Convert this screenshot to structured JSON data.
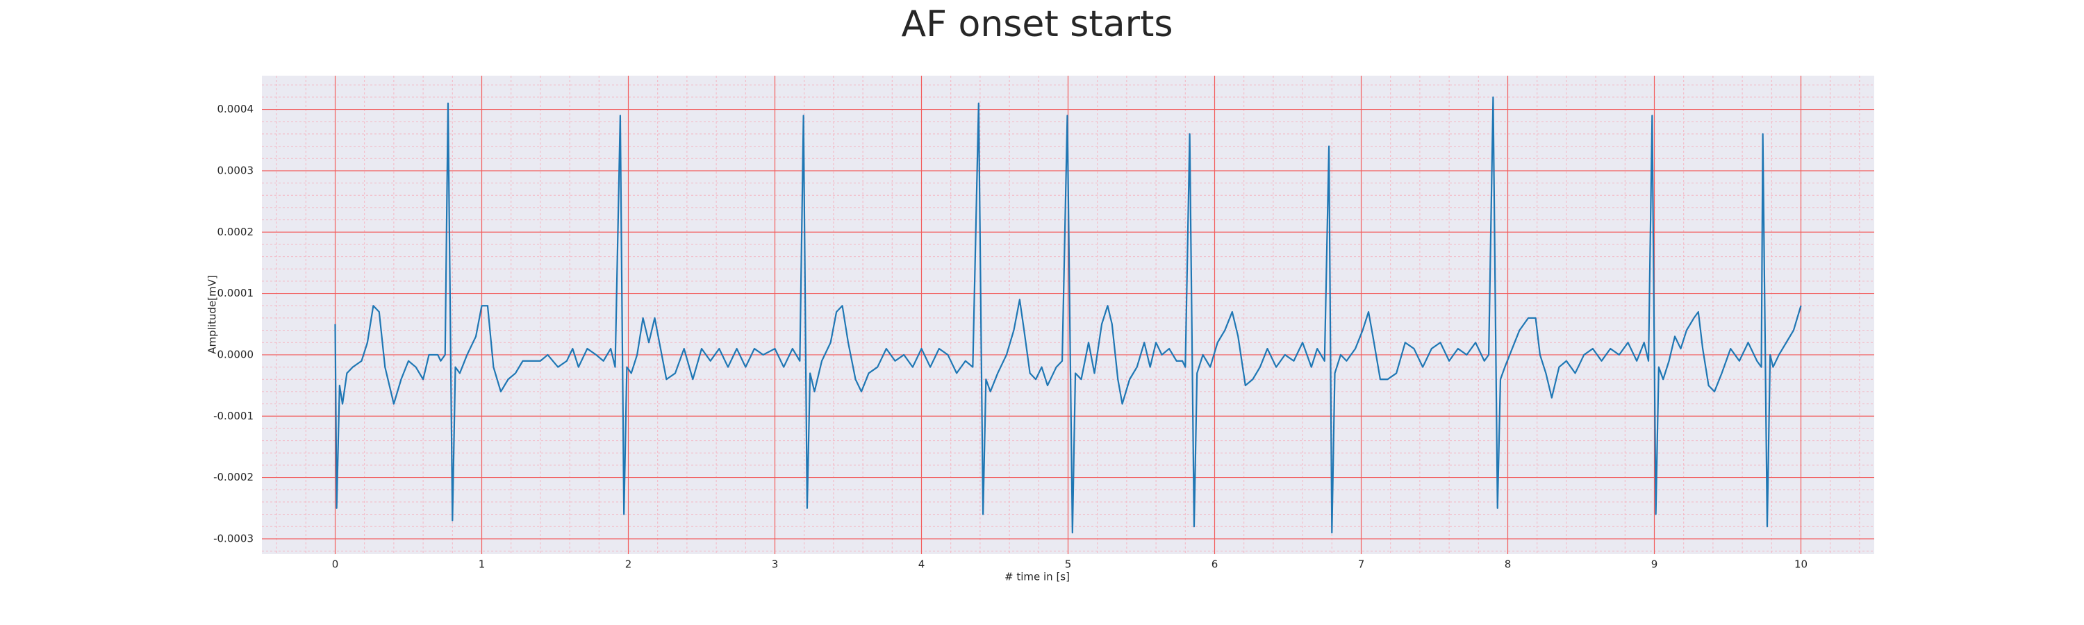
{
  "chart_data": {
    "type": "line",
    "title": "AF onset starts",
    "xlabel": "# time in [s]",
    "ylabel": "Amplitude[mV]",
    "color": "#1f77b4",
    "grid": true,
    "xlim": [
      -0.5,
      10.5
    ],
    "xticks": [
      0,
      1,
      2,
      3,
      4,
      5,
      6,
      7,
      8,
      9,
      10
    ],
    "ylim": [
      -0.000325,
      0.000455
    ],
    "yticks": [
      -0.0003,
      -0.0002,
      -0.0001,
      {
        "value": 0,
        "label": "0.0000"
      },
      0.0001,
      0.0002,
      0.0003,
      0.0004
    ],
    "x": [
      0.0,
      0.01,
      0.03,
      0.05,
      0.08,
      0.12,
      0.18,
      0.22,
      0.26,
      0.3,
      0.34,
      0.4,
      0.45,
      0.5,
      0.55,
      0.6,
      0.64,
      0.7,
      0.72,
      0.75,
      0.77,
      0.8,
      0.82,
      0.85,
      0.9,
      0.96,
      1.0,
      1.04,
      1.08,
      1.13,
      1.18,
      1.23,
      1.28,
      1.35,
      1.4,
      1.45,
      1.52,
      1.58,
      1.62,
      1.66,
      1.72,
      1.78,
      1.83,
      1.88,
      1.91,
      1.945,
      1.97,
      1.99,
      2.02,
      2.06,
      2.1,
      2.14,
      2.18,
      2.22,
      2.26,
      2.32,
      2.38,
      2.44,
      2.5,
      2.56,
      2.62,
      2.68,
      2.74,
      2.8,
      2.86,
      2.92,
      3.0,
      3.06,
      3.12,
      3.17,
      3.195,
      3.22,
      3.24,
      3.27,
      3.32,
      3.38,
      3.42,
      3.46,
      3.5,
      3.55,
      3.59,
      3.64,
      3.7,
      3.76,
      3.82,
      3.88,
      3.94,
      4.0,
      4.06,
      4.12,
      4.18,
      4.24,
      4.3,
      4.35,
      4.39,
      4.42,
      4.44,
      4.47,
      4.52,
      4.58,
      4.63,
      4.67,
      4.7,
      4.74,
      4.78,
      4.82,
      4.86,
      4.92,
      4.96,
      4.995,
      5.03,
      5.05,
      5.09,
      5.14,
      5.18,
      5.23,
      5.27,
      5.3,
      5.34,
      5.37,
      5.42,
      5.47,
      5.52,
      5.56,
      5.6,
      5.64,
      5.69,
      5.74,
      5.78,
      5.8,
      5.83,
      5.86,
      5.88,
      5.92,
      5.97,
      6.02,
      6.07,
      6.12,
      6.16,
      6.21,
      6.26,
      6.31,
      6.36,
      6.42,
      6.48,
      6.54,
      6.6,
      6.66,
      6.7,
      6.75,
      6.78,
      6.8,
      6.82,
      6.86,
      6.9,
      6.96,
      7.01,
      7.05,
      7.08,
      7.13,
      7.18,
      7.24,
      7.3,
      7.36,
      7.42,
      7.48,
      7.54,
      7.6,
      7.66,
      7.72,
      7.78,
      7.84,
      7.87,
      7.9,
      7.93,
      7.95,
      7.98,
      8.03,
      8.08,
      8.14,
      8.19,
      8.22,
      8.26,
      8.3,
      8.35,
      8.4,
      8.46,
      8.52,
      8.58,
      8.64,
      8.7,
      8.76,
      8.82,
      8.88,
      8.93,
      8.96,
      8.985,
      9.01,
      9.03,
      9.06,
      9.1,
      9.14,
      9.18,
      9.22,
      9.27,
      9.3,
      9.33,
      9.37,
      9.41,
      9.46,
      9.52,
      9.58,
      9.64,
      9.7,
      9.73,
      9.74,
      9.77,
      9.79,
      9.81,
      9.85,
      9.9,
      9.95,
      10.0
    ],
    "values": [
      5e-05,
      -0.00025,
      -5e-05,
      -8e-05,
      -3e-05,
      -2e-05,
      -1e-05,
      2e-05,
      8e-05,
      7e-05,
      -2e-05,
      -8e-05,
      -4e-05,
      -1e-05,
      -2e-05,
      -4e-05,
      0,
      0,
      -1e-05,
      0,
      0.00041,
      -0.00027,
      -2e-05,
      -3e-05,
      0,
      3e-05,
      8e-05,
      8e-05,
      -2e-05,
      -6e-05,
      -4e-05,
      -3e-05,
      -1e-05,
      -1e-05,
      -1e-05,
      0,
      -2e-05,
      -1e-05,
      1e-05,
      -2e-05,
      1e-05,
      0,
      -1e-05,
      1e-05,
      -2e-05,
      0.00039,
      -0.00026,
      -2e-05,
      -3e-05,
      0,
      6e-05,
      2e-05,
      6e-05,
      1e-05,
      -4e-05,
      -3e-05,
      1e-05,
      -4e-05,
      1e-05,
      -1e-05,
      1e-05,
      -2e-05,
      1e-05,
      -2e-05,
      1e-05,
      0,
      1e-05,
      -2e-05,
      1e-05,
      -1e-05,
      0.00039,
      -0.00025,
      -3e-05,
      -6e-05,
      -1e-05,
      2e-05,
      7e-05,
      8e-05,
      2e-05,
      -4e-05,
      -6e-05,
      -3e-05,
      -2e-05,
      1e-05,
      -1e-05,
      0,
      -2e-05,
      1e-05,
      -2e-05,
      1e-05,
      0,
      -3e-05,
      -1e-05,
      -2e-05,
      0.00041,
      -0.00026,
      -4e-05,
      -6e-05,
      -3e-05,
      0,
      4e-05,
      9e-05,
      4e-05,
      -3e-05,
      -4e-05,
      -2e-05,
      -5e-05,
      -2e-05,
      -1e-05,
      0.00039,
      -0.00029,
      -3e-05,
      -4e-05,
      2e-05,
      -3e-05,
      5e-05,
      8e-05,
      5e-05,
      -4e-05,
      -8e-05,
      -4e-05,
      -2e-05,
      2e-05,
      -2e-05,
      2e-05,
      0,
      1e-05,
      -1e-05,
      -1e-05,
      -2e-05,
      0.00036,
      -0.00028,
      -3e-05,
      0,
      -2e-05,
      2e-05,
      4e-05,
      7e-05,
      3e-05,
      -5e-05,
      -4e-05,
      -2e-05,
      1e-05,
      -2e-05,
      0,
      -1e-05,
      2e-05,
      -2e-05,
      1e-05,
      -1e-05,
      0.00034,
      -0.00029,
      -3e-05,
      0,
      -1e-05,
      1e-05,
      4e-05,
      7e-05,
      3e-05,
      -4e-05,
      -4e-05,
      -3e-05,
      2e-05,
      1e-05,
      -2e-05,
      1e-05,
      2e-05,
      -1e-05,
      1e-05,
      0,
      2e-05,
      -1e-05,
      0,
      0.00042,
      -0.00025,
      -4e-05,
      -2e-05,
      1e-05,
      4e-05,
      6e-05,
      6e-05,
      0,
      -3e-05,
      -7e-05,
      -2e-05,
      -1e-05,
      -3e-05,
      0,
      1e-05,
      -1e-05,
      1e-05,
      0,
      2e-05,
      -1e-05,
      2e-05,
      -1e-05,
      0.00039,
      -0.00026,
      -2e-05,
      -4e-05,
      -1e-05,
      3e-05,
      1e-05,
      4e-05,
      6e-05,
      7e-05,
      1e-05,
      -5e-05,
      -6e-05,
      -3e-05,
      1e-05,
      -1e-05,
      2e-05,
      -1e-05,
      -2e-05,
      0.00036,
      -0.00028,
      0,
      -2e-05,
      0,
      2e-05,
      4e-05,
      8e-05
    ]
  }
}
